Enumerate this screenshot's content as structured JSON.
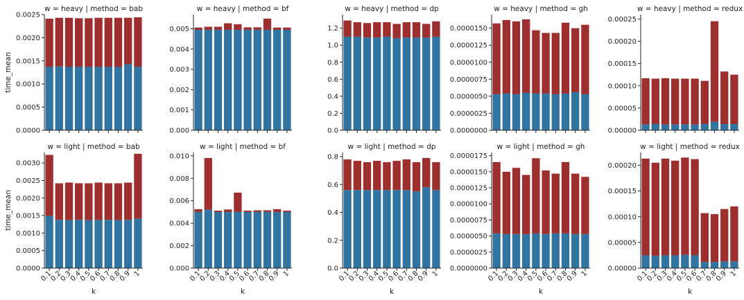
{
  "figure": {
    "colors": {
      "blue": "#3274a1",
      "red": "#9e2f2f",
      "axis": "#222222"
    },
    "y_axis_label": "time_mean",
    "x_axis_label": "k"
  },
  "chart_data": [
    {
      "type": "bar",
      "stacked": true,
      "title": "w = heavy | method = bab",
      "categories": [
        "0.1",
        "0.2",
        "0.3",
        "0.4",
        "0.5",
        "0.6",
        "0.7",
        "0.8",
        "0.9",
        "1"
      ],
      "series": [
        {
          "name": "",
          "color": "#3274a1",
          "values": [
            0.00137,
            0.00138,
            0.00137,
            0.00137,
            0.00137,
            0.00137,
            0.00137,
            0.00137,
            0.00143,
            0.00137
          ]
        },
        {
          "name": "",
          "color": "#9e2f2f",
          "values": [
            0.00104,
            0.00105,
            0.00106,
            0.00105,
            0.00105,
            0.00106,
            0.00106,
            0.00106,
            0.001,
            0.00107
          ]
        }
      ],
      "ylim": [
        0,
        0.0025
      ],
      "yticks": [
        0,
        0.0005,
        0.001,
        0.0015,
        0.002,
        0.0025
      ],
      "ytick_labels": [
        "0.0000",
        "0.0005",
        "0.0010",
        "0.0015",
        "0.0020",
        "0.0025"
      ],
      "xlabel": "",
      "ylabel": "time_mean"
    },
    {
      "type": "bar",
      "stacked": true,
      "title": "w = heavy | method = bf",
      "categories": [
        "0.1",
        "0.2",
        "0.3",
        "0.4",
        "0.5",
        "0.6",
        "0.7",
        "0.8",
        "0.9",
        "1"
      ],
      "series": [
        {
          "name": "",
          "color": "#3274a1",
          "values": [
            0.00495,
            0.00495,
            0.00495,
            0.00495,
            0.00495,
            0.00495,
            0.00495,
            0.00495,
            0.00495,
            0.00495
          ]
        },
        {
          "name": "",
          "color": "#9e2f2f",
          "values": [
            0.00011,
            0.00015,
            0.00015,
            0.00032,
            0.00027,
            0.00012,
            0.00012,
            0.00055,
            0.00011,
            0.00011
          ]
        }
      ],
      "ylim": [
        0,
        0.0057
      ],
      "yticks": [
        0,
        0.001,
        0.002,
        0.003,
        0.004,
        0.005
      ],
      "ytick_labels": [
        "0.000",
        "0.001",
        "0.002",
        "0.003",
        "0.004",
        "0.005"
      ],
      "xlabel": "",
      "ylabel": ""
    },
    {
      "type": "bar",
      "stacked": true,
      "title": "w = heavy | method = dp",
      "categories": [
        "0.1",
        "0.2",
        "0.3",
        "0.4",
        "0.5",
        "0.6",
        "0.7",
        "0.8",
        "0.9",
        "1"
      ],
      "series": [
        {
          "name": "",
          "color": "#3274a1",
          "values": [
            1.1,
            1.1,
            1.09,
            1.09,
            1.1,
            1.08,
            1.09,
            1.09,
            1.09,
            1.1
          ]
        },
        {
          "name": "",
          "color": "#9e2f2f",
          "values": [
            0.19,
            0.17,
            0.17,
            0.18,
            0.17,
            0.17,
            0.18,
            0.18,
            0.16,
            0.18
          ]
        }
      ],
      "ylim": [
        0,
        1.36
      ],
      "yticks": [
        0,
        0.2,
        0.4,
        0.6,
        0.8,
        1.0,
        1.2
      ],
      "ytick_labels": [
        "0.0",
        "0.2",
        "0.4",
        "0.6",
        "0.8",
        "1.0",
        "1.2"
      ],
      "xlabel": "",
      "ylabel": ""
    },
    {
      "type": "bar",
      "stacked": true,
      "title": "w = heavy | method = gh",
      "categories": [
        "0.1",
        "0.2",
        "0.3",
        "0.4",
        "0.5",
        "0.6",
        "0.7",
        "0.8",
        "0.9",
        "1"
      ],
      "series": [
        {
          "name": "",
          "color": "#3274a1",
          "values": [
            5.3e-06,
            5.4e-06,
            5.3e-06,
            5.5e-06,
            5.4e-06,
            5.4e-06,
            5.3e-06,
            5.4e-06,
            5.6e-06,
            5.3e-06
          ]
        },
        {
          "name": "",
          "color": "#9e2f2f",
          "values": [
            1.04e-05,
            1.08e-05,
            1.07e-05,
            1.08e-05,
            9.3e-06,
            8.9e-06,
            9e-06,
            1.04e-05,
            9.4e-06,
            1.02e-05
          ]
        }
      ],
      "ylim": [
        0,
        1.7e-05
      ],
      "yticks": [
        0,
        2.5e-06,
        5e-06,
        7.5e-06,
        1e-05,
        1.25e-05,
        1.5e-05
      ],
      "ytick_labels": [
        "0.0000000",
        "0.0000025",
        "0.0000050",
        "0.0000075",
        "0.0000100",
        "0.0000125",
        "0.0000150"
      ],
      "xlabel": "",
      "ylabel": ""
    },
    {
      "type": "bar",
      "stacked": true,
      "title": "w = heavy | method = redux",
      "categories": [
        "0.1",
        "0.2",
        "0.3",
        "0.4",
        "0.5",
        "0.6",
        "0.7",
        "0.8",
        "0.9",
        "1"
      ],
      "series": [
        {
          "name": "",
          "color": "#3274a1",
          "values": [
            1.3e-05,
            1.4e-05,
            1.3e-05,
            1.3e-05,
            1.3e-05,
            1.3e-05,
            1.4e-05,
            1.9e-05,
            1.4e-05,
            1.4e-05
          ]
        },
        {
          "name": "",
          "color": "#9e2f2f",
          "values": [
            0.000104,
            0.000102,
            0.000104,
            0.000103,
            0.000103,
            0.000103,
            9.7e-05,
            0.000226,
            0.000118,
            0.000111
          ]
        }
      ],
      "ylim": [
        0,
        0.00026
      ],
      "yticks": [
        0,
        5e-05,
        0.0001,
        0.00015,
        0.0002,
        0.00025
      ],
      "ytick_labels": [
        "0.00000",
        "0.00005",
        "0.00010",
        "0.00015",
        "0.00020",
        "0.00025"
      ],
      "xlabel": "",
      "ylabel": ""
    },
    {
      "type": "bar",
      "stacked": true,
      "title": "w = light | method = bab",
      "categories": [
        "0.1",
        "0.2",
        "0.3",
        "0.4",
        "0.5",
        "0.6",
        "0.7",
        "0.8",
        "0.9",
        "1"
      ],
      "series": [
        {
          "name": "",
          "color": "#3274a1",
          "values": [
            0.00149,
            0.00138,
            0.00137,
            0.00138,
            0.00137,
            0.00137,
            0.00138,
            0.00137,
            0.00138,
            0.00141
          ]
        },
        {
          "name": "",
          "color": "#9e2f2f",
          "values": [
            0.00174,
            0.00104,
            0.00107,
            0.00104,
            0.00105,
            0.00107,
            0.00104,
            0.00105,
            0.00106,
            0.00185
          ]
        }
      ],
      "ylim": [
        0,
        0.0033
      ],
      "yticks": [
        0,
        0.0005,
        0.001,
        0.0015,
        0.002,
        0.0025,
        0.003
      ],
      "ytick_labels": [
        "0.0000",
        "0.0005",
        "0.0010",
        "0.0015",
        "0.0020",
        "0.0025",
        "0.0030"
      ],
      "xlabel": "k",
      "ylabel": "time_mean"
    },
    {
      "type": "bar",
      "stacked": true,
      "title": "w = light | method = bf",
      "categories": [
        "0.1",
        "0.2",
        "0.3",
        "0.4",
        "0.5",
        "0.6",
        "0.7",
        "0.8",
        "0.9",
        "1"
      ],
      "series": [
        {
          "name": "",
          "color": "#3274a1",
          "values": [
            0.005,
            0.0052,
            0.005,
            0.005,
            0.005,
            0.005,
            0.005,
            0.005,
            0.005,
            0.005
          ]
        },
        {
          "name": "",
          "color": "#9e2f2f",
          "values": [
            0.00025,
            0.0046,
            0.00012,
            0.00022,
            0.00172,
            0.00012,
            0.00015,
            0.00015,
            0.00025,
            0.00012
          ]
        }
      ],
      "ylim": [
        0,
        0.0103
      ],
      "yticks": [
        0,
        0.002,
        0.004,
        0.006,
        0.008,
        0.01
      ],
      "ytick_labels": [
        "0.000",
        "0.002",
        "0.004",
        "0.006",
        "0.008",
        "0.010"
      ],
      "xlabel": "k",
      "ylabel": ""
    },
    {
      "type": "bar",
      "stacked": true,
      "title": "w = light | method = dp",
      "categories": [
        "0.1",
        "0.2",
        "0.3",
        "0.4",
        "0.5",
        "0.6",
        "0.7",
        "0.8",
        "0.9",
        "1"
      ],
      "series": [
        {
          "name": "",
          "color": "#3274a1",
          "values": [
            0.56,
            0.56,
            0.56,
            0.56,
            0.56,
            0.56,
            0.56,
            0.55,
            0.58,
            0.56
          ]
        },
        {
          "name": "",
          "color": "#9e2f2f",
          "values": [
            0.22,
            0.21,
            0.2,
            0.21,
            0.2,
            0.21,
            0.22,
            0.21,
            0.21,
            0.2
          ]
        }
      ],
      "ylim": [
        0,
        0.83
      ],
      "yticks": [
        0,
        0.2,
        0.4,
        0.6,
        0.8
      ],
      "ytick_labels": [
        "0.0",
        "0.2",
        "0.4",
        "0.6",
        "0.8"
      ],
      "xlabel": "k",
      "ylabel": ""
    },
    {
      "type": "bar",
      "stacked": true,
      "title": "w = light | method = gh",
      "categories": [
        "0.1",
        "0.2",
        "0.3",
        "0.4",
        "0.5",
        "0.6",
        "0.7",
        "0.8",
        "0.9",
        "1"
      ],
      "series": [
        {
          "name": "",
          "color": "#3274a1",
          "values": [
            5.4e-06,
            5.3e-06,
            5.3e-06,
            5.3e-06,
            5.4e-06,
            5.3e-06,
            5.4e-06,
            5.4e-06,
            5.3e-06,
            5.3e-06
          ]
        },
        {
          "name": "",
          "color": "#9e2f2f",
          "values": [
            1.11e-05,
            9.7e-06,
            1.03e-05,
            9.2e-06,
            1.17e-05,
            9.9e-06,
            9.3e-06,
            1.11e-05,
            9.4e-06,
            8.9e-06
          ]
        }
      ],
      "ylim": [
        0,
        1.8e-05
      ],
      "yticks": [
        0,
        2.5e-06,
        5e-06,
        7.5e-06,
        1e-05,
        1.25e-05,
        1.5e-05,
        1.75e-05
      ],
      "ytick_labels": [
        "0.0000000",
        "0.0000025",
        "0.0000050",
        "0.0000075",
        "0.0000100",
        "0.0000125",
        "0.0000150",
        "0.0000175"
      ],
      "xlabel": "k",
      "ylabel": ""
    },
    {
      "type": "bar",
      "stacked": true,
      "title": "w = light | method = redux",
      "categories": [
        "0.1",
        "0.2",
        "0.3",
        "0.4",
        "0.5",
        "0.6",
        "0.7",
        "0.8",
        "0.9",
        "1"
      ],
      "series": [
        {
          "name": "",
          "color": "#3274a1",
          "values": [
            2.5e-05,
            2.4e-05,
            2.5e-05,
            2.5e-05,
            2.6e-05,
            2.5e-05,
            1.2e-05,
            1.2e-05,
            1.3e-05,
            1.3e-05
          ]
        },
        {
          "name": "",
          "color": "#9e2f2f",
          "values": [
            0.000188,
            0.000181,
            0.000188,
            0.000184,
            0.000189,
            0.000187,
            9.5e-05,
            9.3e-05,
            0.000102,
            0.000107
          ]
        }
      ],
      "ylim": [
        0,
        0.000225
      ],
      "yticks": [
        0,
        5e-05,
        0.0001,
        0.00015,
        0.0002
      ],
      "ytick_labels": [
        "0.00000",
        "0.00005",
        "0.00010",
        "0.00015",
        "0.00020"
      ],
      "xlabel": "k",
      "ylabel": ""
    }
  ]
}
